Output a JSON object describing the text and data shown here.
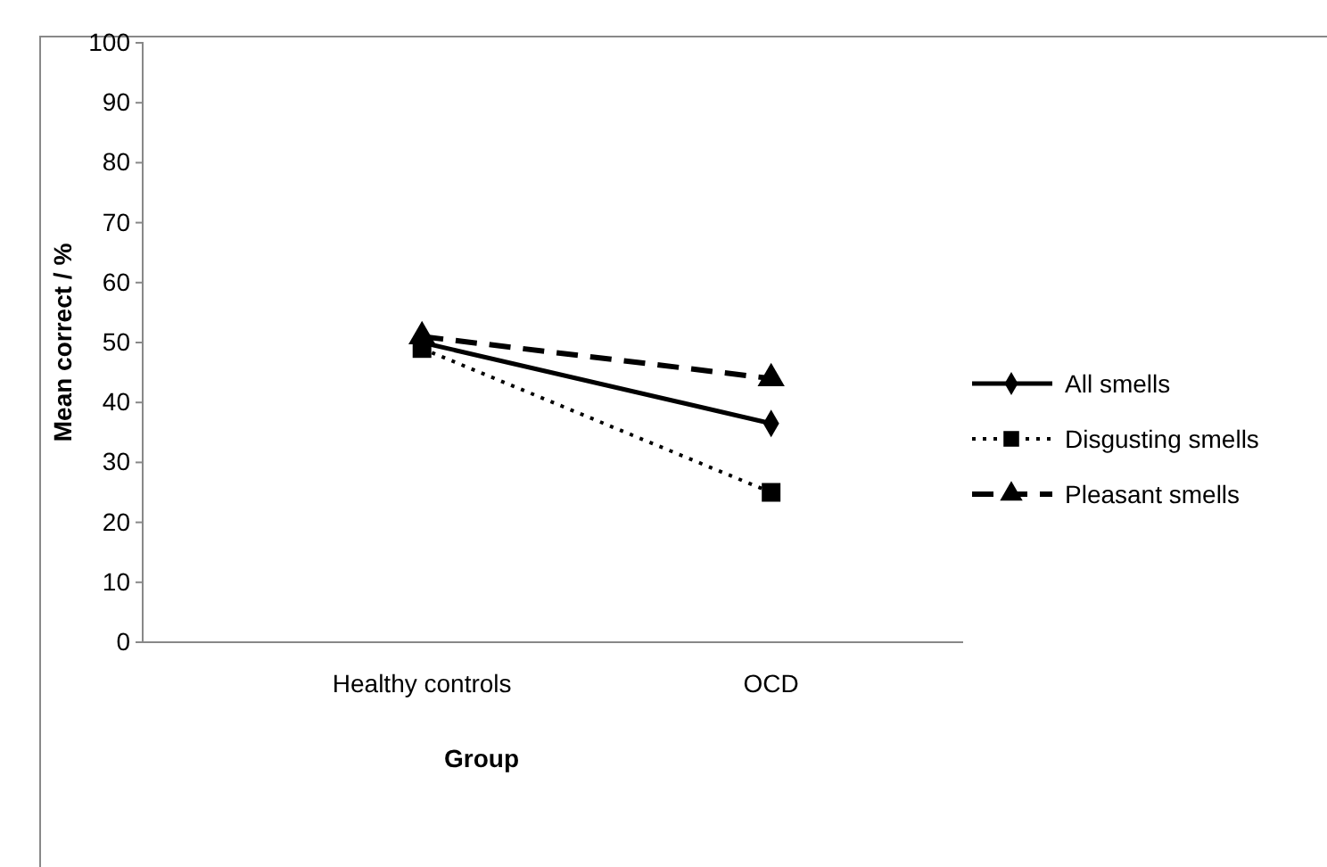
{
  "chart_data": {
    "type": "line",
    "xlabel": "Group",
    "ylabel": "Mean correct / %",
    "categories": [
      "Healthy controls",
      "OCD"
    ],
    "series": [
      {
        "name": "All smells",
        "color": "#000000",
        "values": [
          50,
          36.5
        ],
        "marker": "diamond",
        "line_style": "solid"
      },
      {
        "name": "Disgusting smells",
        "color": "#000000",
        "values": [
          49,
          25
        ],
        "marker": "square",
        "line_style": "dotted"
      },
      {
        "name": "Pleasant smells",
        "color": "#000000",
        "values": [
          51,
          44
        ],
        "marker": "triangle",
        "line_style": "dashed"
      }
    ],
    "ylim": [
      0,
      100
    ],
    "yticks": [
      0,
      10,
      20,
      30,
      40,
      50,
      60,
      70,
      80,
      90,
      100
    ],
    "grid": false,
    "legend": "right"
  }
}
